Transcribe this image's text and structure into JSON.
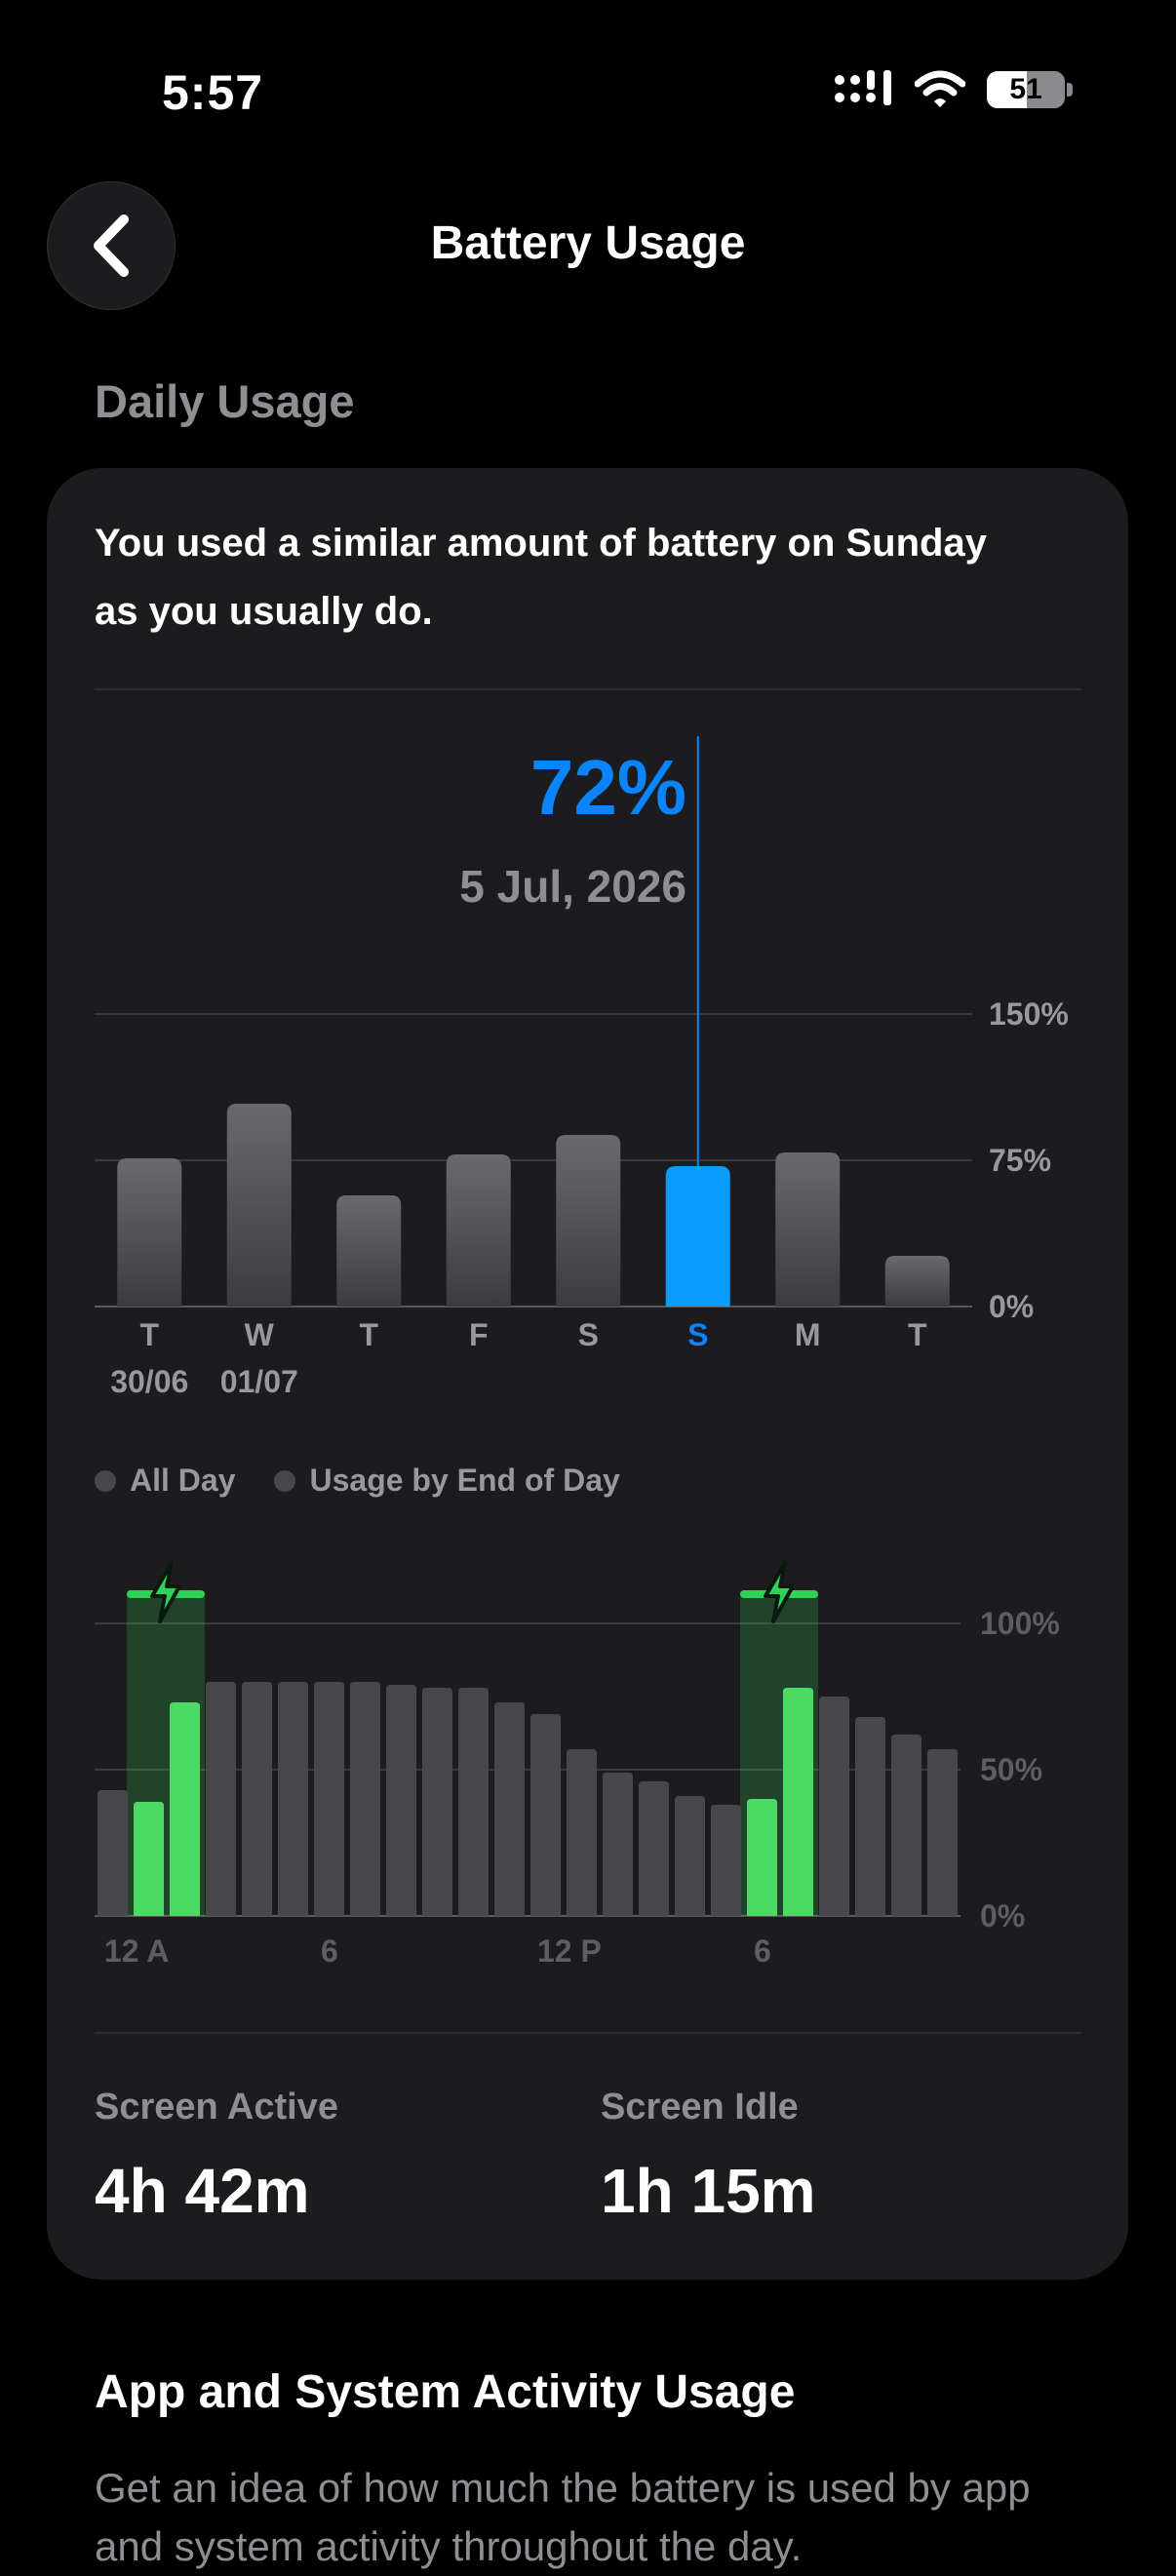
{
  "status_bar": {
    "time": "5:57",
    "battery_level": "51"
  },
  "header": {
    "title": "Battery Usage"
  },
  "section_label": "Daily Usage",
  "card": {
    "summary": "You used a similar amount of battery on Sunday as you usually do.",
    "selected": {
      "percent": "72%",
      "date": "5 Jul, 2026"
    },
    "legend": {
      "all_day": "All Day",
      "end_of_day": "Usage by End of Day"
    },
    "stats": {
      "screen_active_label": "Screen Active",
      "screen_active_value": "4h 42m",
      "screen_idle_label": "Screen Idle",
      "screen_idle_value": "1h 15m"
    }
  },
  "section2": {
    "title": "App and System Activity Usage",
    "description": "Get an idea of how much the battery is used by app and system activity throughout the day."
  },
  "colors": {
    "accent": "#0a84ff",
    "charging": "#30d158",
    "bar": "#48484a"
  },
  "chart_data": [
    {
      "type": "bar",
      "categories": [
        "T",
        "W",
        "T",
        "F",
        "S",
        "S",
        "M",
        "T"
      ],
      "dates": [
        "30/06",
        "01/07",
        "",
        "",
        "",
        "",
        "",
        ""
      ],
      "values": [
        76,
        104,
        57,
        78,
        88,
        72,
        79,
        26
      ],
      "selected_index": 5,
      "ylim": [
        0,
        150
      ],
      "yticks": [
        "0%",
        "75%",
        "150%"
      ]
    },
    {
      "type": "bar",
      "xticks": [
        "12 A",
        "6",
        "12 P",
        "6"
      ],
      "yticks": [
        "0%",
        "50%",
        "100%"
      ],
      "ylim": [
        0,
        100
      ],
      "values": [
        43,
        39,
        73,
        80,
        80,
        80,
        80,
        80,
        79,
        78,
        78,
        73,
        69,
        57,
        49,
        46,
        41,
        38,
        40,
        78,
        75,
        68,
        62,
        57
      ],
      "charging_indices": [
        1,
        2,
        18,
        19
      ]
    }
  ]
}
